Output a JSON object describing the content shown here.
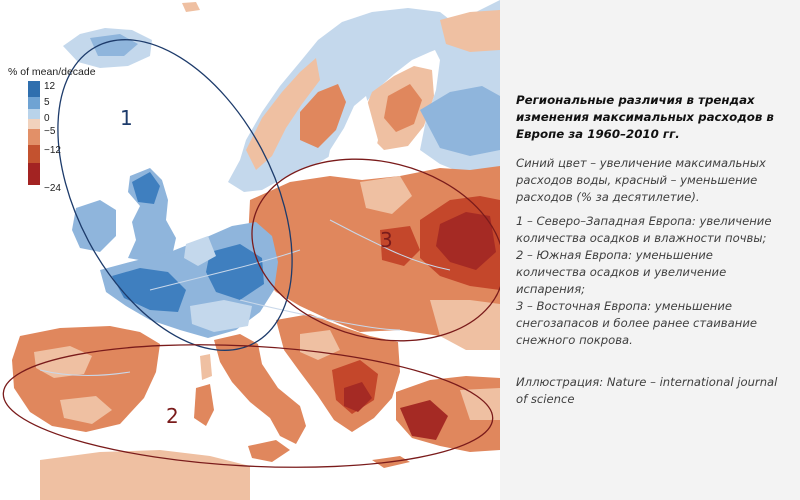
{
  "map": {
    "legend": {
      "title": "% of mean/decade",
      "ticks": [
        "12",
        "5",
        "0",
        "−5",
        "−12",
        "−24"
      ],
      "colors": [
        "#2f6fae",
        "#6fa3d3",
        "#b9d3ea",
        "#f1d2bd",
        "#e29068",
        "#c3522f",
        "#a32322"
      ]
    },
    "regions": [
      {
        "number": "1",
        "ellipse_color": "#1d3b6b"
      },
      {
        "number": "2",
        "ellipse_color": "#7a1b1b"
      },
      {
        "number": "3",
        "ellipse_color": "#7a1b1b"
      }
    ],
    "land_colors": {
      "blue_dark": "#3f7fbf",
      "blue": "#8fb5dc",
      "blue_light": "#c4d8ec",
      "neutral": "#eee7e0",
      "orange_light": "#efc0a2",
      "orange": "#e0875d",
      "red": "#c4472b",
      "red_dark": "#a52a24",
      "river": "#c9d8ea"
    }
  },
  "caption": {
    "heading": "Региональные различия в трендах изменения максимальных расходов в Европе за 1960–2010 гг.",
    "intro": "Синий цвет – увеличение максимальных расходов воды, красный – уменьшение расходов (% за десятилетие).",
    "list": [
      "1 – Северо–Западная Европа: увеличение количества осадков и влажности почвы;",
      "2 – Южная Европа: уменьшение количества осадков и увеличение испарения;",
      "3 – Восточная Европа: уменьшение снегозапасов и более ранее стаивание снежного покрова."
    ],
    "credit": "Иллюстрация: Nature – international journal of science"
  }
}
